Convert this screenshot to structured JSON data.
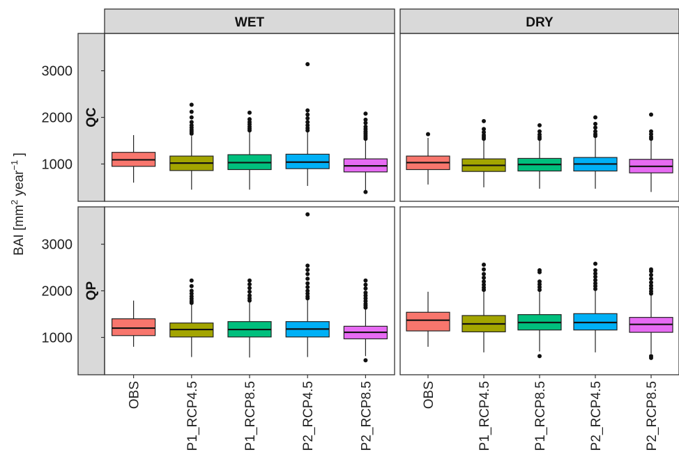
{
  "chart_data": {
    "type": "boxplot",
    "ylabel": "BAI [mm2 year-1 ]",
    "ylabel_parts": {
      "base": "BAI [mm",
      "sup1": "2",
      "mid": " year",
      "sup2": "−1",
      "end": " ]"
    },
    "ylim": [
      200,
      3800
    ],
    "yticks": [
      1000,
      2000,
      3000
    ],
    "column_facets": [
      "WET",
      "DRY"
    ],
    "row_facets": [
      "QC",
      "QP"
    ],
    "categories": [
      "OBS",
      "P1_RCP4.5",
      "P1_RCP8.5",
      "P2_RCP4.5",
      "P2_RCP8.5"
    ],
    "colors": [
      "#F8766D",
      "#A3A500",
      "#00BF7D",
      "#00B0F6",
      "#E76BF3"
    ],
    "panels": [
      {
        "row": "QC",
        "col": "WET",
        "boxes": [
          {
            "category": "OBS",
            "q1": 950,
            "median": 1090,
            "q3": 1250,
            "whisker_low": 600,
            "whisker_high": 1620,
            "outliers": []
          },
          {
            "category": "P1_RCP4.5",
            "q1": 860,
            "median": 1020,
            "q3": 1170,
            "whisker_low": 450,
            "whisker_high": 1600,
            "outliers": [
              1650,
              1690,
              1730,
              1780,
              1830,
              1900,
              2000,
              2120,
              2270
            ]
          },
          {
            "category": "P1_RCP8.5",
            "q1": 880,
            "median": 1030,
            "q3": 1200,
            "whisker_low": 450,
            "whisker_high": 1680,
            "outliers": [
              1720,
              1760,
              1800,
              1850,
              1900,
              1960,
              2100
            ]
          },
          {
            "category": "P2_RCP4.5",
            "q1": 900,
            "median": 1040,
            "q3": 1210,
            "whisker_low": 530,
            "whisker_high": 1680,
            "outliers": [
              1720,
              1770,
              1830,
              1900,
              1980,
              2060,
              2150,
              3140
            ]
          },
          {
            "category": "P2_RCP8.5",
            "q1": 830,
            "median": 960,
            "q3": 1110,
            "whisker_low": 420,
            "whisker_high": 1500,
            "outliers": [
              1540,
              1580,
              1620,
              1660,
              1700,
              1750,
              1800,
              1880,
              1950,
              2080,
              400
            ]
          }
        ]
      },
      {
        "row": "QC",
        "col": "DRY",
        "boxes": [
          {
            "category": "OBS",
            "q1": 880,
            "median": 1030,
            "q3": 1170,
            "whisker_low": 560,
            "whisker_high": 1560,
            "outliers": [
              1640
            ]
          },
          {
            "category": "P1_RCP4.5",
            "q1": 840,
            "median": 970,
            "q3": 1110,
            "whisker_low": 500,
            "whisker_high": 1500,
            "outliers": [
              1540,
              1580,
              1620,
              1680,
              1750,
              1920
            ]
          },
          {
            "category": "P1_RCP8.5",
            "q1": 850,
            "median": 990,
            "q3": 1120,
            "whisker_low": 470,
            "whisker_high": 1500,
            "outliers": [
              1540,
              1580,
              1630,
              1700,
              1830
            ]
          },
          {
            "category": "P2_RCP4.5",
            "q1": 850,
            "median": 1000,
            "q3": 1140,
            "whisker_low": 470,
            "whisker_high": 1560,
            "outliers": [
              1600,
              1640,
              1700,
              1780,
              1860,
              2000
            ]
          },
          {
            "category": "P2_RCP8.5",
            "q1": 810,
            "median": 950,
            "q3": 1100,
            "whisker_low": 400,
            "whisker_high": 1500,
            "outliers": [
              1540,
              1580,
              1640,
              1700,
              2060
            ]
          }
        ]
      },
      {
        "row": "QP",
        "col": "WET",
        "boxes": [
          {
            "category": "OBS",
            "q1": 1040,
            "median": 1200,
            "q3": 1400,
            "whisker_low": 800,
            "whisker_high": 1790,
            "outliers": []
          },
          {
            "category": "P1_RCP4.5",
            "q1": 1010,
            "median": 1170,
            "q3": 1310,
            "whisker_low": 580,
            "whisker_high": 1700,
            "outliers": [
              1740,
              1780,
              1830,
              1880,
              1940,
              2000,
              2100,
              2220
            ]
          },
          {
            "category": "P1_RCP8.5",
            "q1": 1010,
            "median": 1170,
            "q3": 1340,
            "whisker_low": 570,
            "whisker_high": 1750,
            "outliers": [
              1790,
              1840,
              1900,
              1980,
              2060,
              2140,
              2220
            ]
          },
          {
            "category": "P2_RCP4.5",
            "q1": 1010,
            "median": 1180,
            "q3": 1340,
            "whisker_low": 580,
            "whisker_high": 1800,
            "outliers": [
              1840,
              1880,
              1940,
              2000,
              2080,
              2160,
              2260,
              2360,
              2450,
              2540,
              3640
            ]
          },
          {
            "category": "P2_RCP8.5",
            "q1": 970,
            "median": 1110,
            "q3": 1240,
            "whisker_low": 600,
            "whisker_high": 1600,
            "outliers": [
              1640,
              1680,
              1720,
              1780,
              1840,
              1900,
              1960,
              2050,
              2130,
              2220,
              510
            ]
          }
        ]
      },
      {
        "row": "QP",
        "col": "DRY",
        "boxes": [
          {
            "category": "OBS",
            "q1": 1140,
            "median": 1370,
            "q3": 1540,
            "whisker_low": 800,
            "whisker_high": 1980,
            "outliers": []
          },
          {
            "category": "P1_RCP4.5",
            "q1": 1120,
            "median": 1290,
            "q3": 1470,
            "whisker_low": 680,
            "whisker_high": 1980,
            "outliers": [
              2020,
              2070,
              2130,
              2200,
              2280,
              2360,
              2460,
              2560
            ]
          },
          {
            "category": "P1_RCP8.5",
            "q1": 1160,
            "median": 1320,
            "q3": 1490,
            "whisker_low": 700,
            "whisker_high": 1980,
            "outliers": [
              2020,
              2080,
              2140,
              2200,
              2400,
              2440,
              600
            ]
          },
          {
            "category": "P2_RCP4.5",
            "q1": 1160,
            "median": 1320,
            "q3": 1510,
            "whisker_low": 680,
            "whisker_high": 2000,
            "outliers": [
              2040,
              2100,
              2160,
              2230,
              2300,
              2370,
              2440,
              2580
            ]
          },
          {
            "category": "P2_RCP8.5",
            "q1": 1110,
            "median": 1280,
            "q3": 1430,
            "whisker_low": 650,
            "whisker_high": 1900,
            "outliers": [
              1940,
              1990,
              2050,
              2110,
              2180,
              2260,
              2340,
              2420,
              2460,
              600,
              560
            ]
          }
        ]
      }
    ]
  }
}
